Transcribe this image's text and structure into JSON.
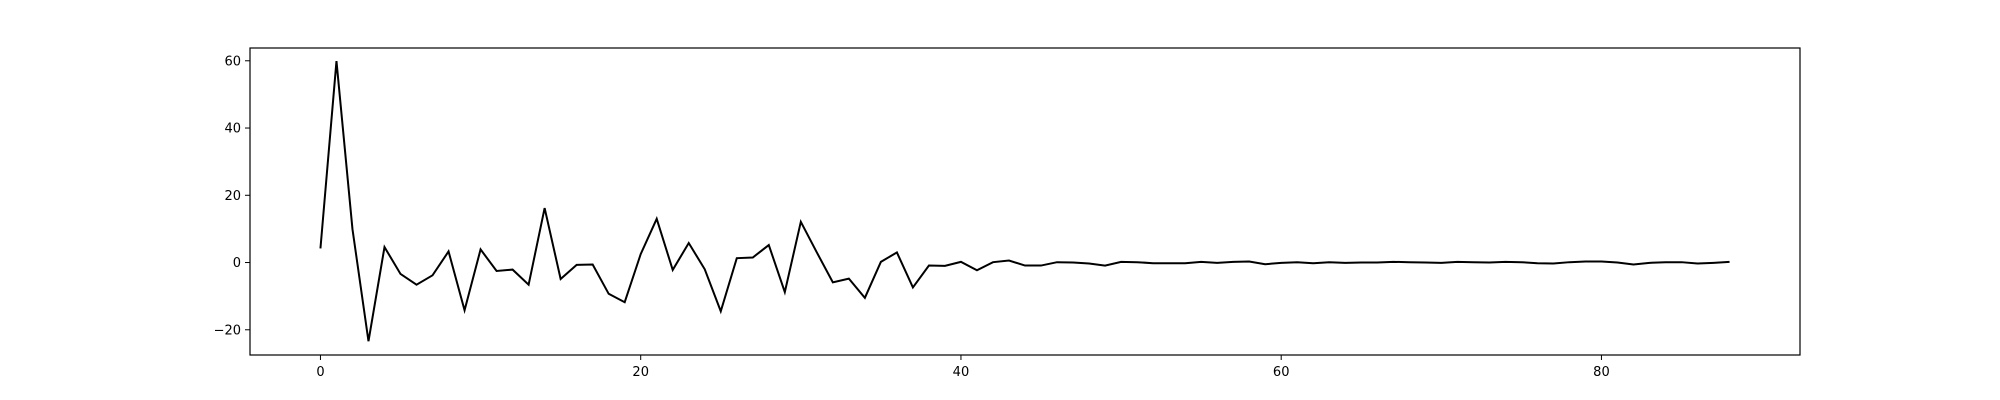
{
  "chart_data": {
    "type": "line",
    "title": "",
    "xlabel": "",
    "ylabel": "",
    "xlim": [
      -4.4,
      92.4
    ],
    "ylim": [
      -27.5,
      63.8
    ],
    "grid": false,
    "x_ticks": [
      0,
      20,
      40,
      60,
      80
    ],
    "y_ticks": [
      -20,
      0,
      20,
      40,
      60
    ],
    "x_tick_labels": [
      "0",
      "20",
      "40",
      "60",
      "80"
    ],
    "y_tick_labels": [
      "−20",
      "0",
      "20",
      "40",
      "60"
    ],
    "series": [
      {
        "color": "#000000",
        "x": [
          0,
          1,
          2,
          3,
          4,
          5,
          6,
          7,
          8,
          9,
          10,
          11,
          12,
          13,
          14,
          15,
          16,
          17,
          18,
          19,
          20,
          21,
          22,
          23,
          24,
          25,
          26,
          27,
          28,
          29,
          30,
          31,
          32,
          33,
          34,
          35,
          36,
          37,
          38,
          39,
          40,
          41,
          42,
          43,
          44,
          45,
          46,
          47,
          48,
          49,
          50,
          51,
          52,
          53,
          54,
          55,
          56,
          57,
          58,
          59,
          60,
          61,
          62,
          63,
          64,
          65,
          66,
          67,
          68,
          69,
          70,
          71,
          72,
          73,
          74,
          75,
          76,
          77,
          78,
          79,
          80,
          81,
          82,
          83,
          84,
          85,
          86,
          87,
          88
        ],
        "y": [
          4.2,
          59.9,
          9.9,
          -23.4,
          4.6,
          -3.4,
          -6.6,
          -3.8,
          3.3,
          -14.2,
          3.9,
          -2.5,
          -2.1,
          -6.6,
          16.2,
          -4.9,
          -0.7,
          -0.6,
          -9.3,
          -11.8,
          2.5,
          13.0,
          -2.2,
          5.8,
          -2.0,
          -14.5,
          1.3,
          1.5,
          5.2,
          -8.8,
          12.1,
          3.0,
          -5.9,
          -4.8,
          -10.5,
          0.2,
          3.0,
          -7.4,
          -0.9,
          -1.0,
          0.2,
          -2.3,
          0.1,
          0.6,
          -0.9,
          -0.9,
          0.1,
          0.0,
          -0.3,
          -0.9,
          0.2,
          0.1,
          -0.2,
          -0.2,
          -0.2,
          0.2,
          -0.1,
          0.2,
          0.3,
          -0.5,
          -0.1,
          0.1,
          -0.2,
          0.1,
          -0.1,
          0.0,
          0.0,
          0.2,
          0.1,
          0.0,
          -0.1,
          0.2,
          0.1,
          0.0,
          0.2,
          0.1,
          -0.2,
          -0.3,
          0.1,
          0.3,
          0.3,
          0.0,
          -0.6,
          -0.1,
          0.1,
          0.1,
          -0.3,
          -0.1,
          0.2
        ]
      }
    ]
  }
}
